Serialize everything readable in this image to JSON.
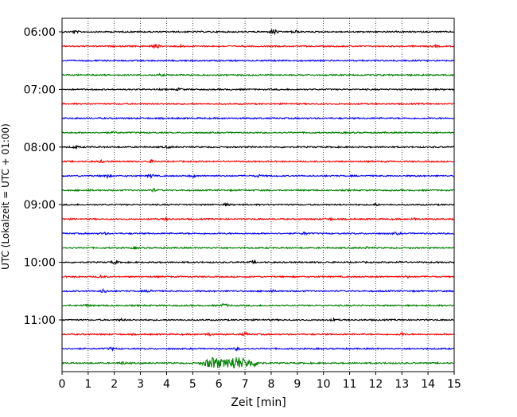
{
  "chart_data": {
    "type": "line",
    "title": "",
    "xlabel": "Zeit  [min]",
    "ylabel": "UTC (Lokalzeit = UTC + 01:00)",
    "xlim": [
      0,
      15
    ],
    "x_ticks": [
      0,
      1,
      2,
      3,
      4,
      5,
      6,
      7,
      8,
      9,
      10,
      11,
      12,
      13,
      14,
      15
    ],
    "x_tick_labels": [
      "0",
      "1",
      "2",
      "3",
      "4",
      "5",
      "6",
      "7",
      "8",
      "9",
      "10",
      "11",
      "12",
      "13",
      "14",
      "15"
    ],
    "y_tick_labels": [
      "06:00",
      "07:00",
      "08:00",
      "09:00",
      "10:00",
      "11:00"
    ],
    "grid": "vertical dotted",
    "trace_interval_minutes": 15,
    "first_trace": "06:00",
    "trace_colors": [
      "#000000",
      "#ff0000",
      "#0000ff",
      "#008000"
    ],
    "traces": [
      {
        "start": "06:00",
        "bursts": [
          {
            "t": 8.1,
            "amp": 0.9
          },
          {
            "t": 8.9,
            "amp": 0.5
          },
          {
            "t": 0.5,
            "amp": 0.35
          }
        ]
      },
      {
        "start": "06:15",
        "bursts": [
          {
            "t": 3.6,
            "amp": 0.7
          },
          {
            "t": 4.6,
            "amp": 0.4
          },
          {
            "t": 14.3,
            "amp": 0.3
          }
        ]
      },
      {
        "start": "06:30",
        "bursts": []
      },
      {
        "start": "06:45",
        "bursts": [
          {
            "t": 3.8,
            "amp": 0.25
          }
        ]
      },
      {
        "start": "07:00",
        "bursts": [
          {
            "t": 4.5,
            "amp": 0.35
          }
        ]
      },
      {
        "start": "07:15",
        "bursts": []
      },
      {
        "start": "07:30",
        "bursts": []
      },
      {
        "start": "07:45",
        "bursts": [
          {
            "t": 2.0,
            "amp": 0.2
          }
        ]
      },
      {
        "start": "08:00",
        "bursts": [
          {
            "t": 0.5,
            "amp": 0.35
          },
          {
            "t": 4.0,
            "amp": 0.3
          }
        ]
      },
      {
        "start": "08:15",
        "bursts": [
          {
            "t": 1.5,
            "amp": 0.35
          },
          {
            "t": 3.4,
            "amp": 0.4
          }
        ]
      },
      {
        "start": "08:30",
        "bursts": [
          {
            "t": 1.7,
            "amp": 0.6
          },
          {
            "t": 3.4,
            "amp": 0.55
          },
          {
            "t": 5.0,
            "amp": 0.4
          },
          {
            "t": 7.5,
            "amp": 0.35
          }
        ]
      },
      {
        "start": "08:45",
        "bursts": [
          {
            "t": 3.5,
            "amp": 0.45
          },
          {
            "t": 1.0,
            "amp": 0.25
          }
        ]
      },
      {
        "start": "09:00",
        "bursts": [
          {
            "t": 6.3,
            "amp": 0.4
          },
          {
            "t": 12.0,
            "amp": 0.3
          }
        ]
      },
      {
        "start": "09:15",
        "bursts": [
          {
            "t": 4.0,
            "amp": 0.4
          },
          {
            "t": 10.2,
            "amp": 0.4
          },
          {
            "t": 13.5,
            "amp": 0.35
          }
        ]
      },
      {
        "start": "09:30",
        "bursts": [
          {
            "t": 1.6,
            "amp": 0.35
          },
          {
            "t": 9.3,
            "amp": 0.4
          },
          {
            "t": 12.8,
            "amp": 0.3
          }
        ]
      },
      {
        "start": "09:45",
        "bursts": [
          {
            "t": 2.8,
            "amp": 0.3
          },
          {
            "t": 11.7,
            "amp": 0.3
          }
        ]
      },
      {
        "start": "10:00",
        "bursts": [
          {
            "t": 2.0,
            "amp": 0.45
          },
          {
            "t": 7.3,
            "amp": 0.35
          },
          {
            "t": 13.0,
            "amp": 0.3
          }
        ]
      },
      {
        "start": "10:15",
        "bursts": [
          {
            "t": 1.5,
            "amp": 0.4
          },
          {
            "t": 13.2,
            "amp": 0.3
          }
        ]
      },
      {
        "start": "10:30",
        "bursts": [
          {
            "t": 1.6,
            "amp": 0.6
          },
          {
            "t": 3.4,
            "amp": 0.4
          },
          {
            "t": 8.0,
            "amp": 0.35
          }
        ]
      },
      {
        "start": "10:45",
        "bursts": [
          {
            "t": 6.2,
            "amp": 0.55
          },
          {
            "t": 0.9,
            "amp": 0.35
          }
        ]
      },
      {
        "start": "11:00",
        "bursts": [
          {
            "t": 2.3,
            "amp": 0.35
          },
          {
            "t": 10.4,
            "amp": 0.3
          }
        ]
      },
      {
        "start": "11:15",
        "bursts": [
          {
            "t": 5.6,
            "amp": 0.5
          },
          {
            "t": 7.0,
            "amp": 0.45
          },
          {
            "t": 13.0,
            "amp": 0.4
          }
        ]
      },
      {
        "start": "11:30",
        "bursts": [
          {
            "t": 1.9,
            "amp": 0.45
          },
          {
            "t": 6.7,
            "amp": 0.4
          }
        ]
      },
      {
        "start": "11:45",
        "bursts": [
          {
            "t": 5.8,
            "amp": 2.1
          },
          {
            "t": 6.6,
            "amp": 2.4
          },
          {
            "t": 7.2,
            "amp": 1.2
          },
          {
            "t": 2.3,
            "amp": 0.45
          }
        ]
      }
    ]
  }
}
